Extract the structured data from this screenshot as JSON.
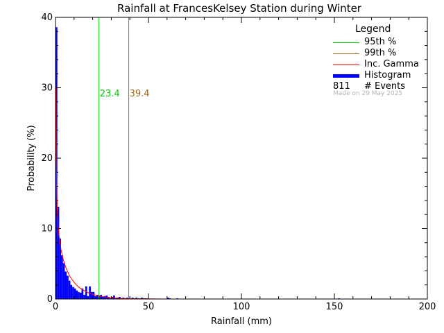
{
  "chart_data": {
    "type": "bar",
    "title": "Rainfall at FrancesKelsey Station during Winter",
    "xlabel": "Rainfall (mm)",
    "ylabel": "Probability (%)",
    "xlim": [
      0,
      200
    ],
    "ylim": [
      0,
      40
    ],
    "x_ticks": [
      0,
      50,
      100,
      150,
      200
    ],
    "y_ticks": [
      0,
      10,
      20,
      30,
      40
    ],
    "grid": false,
    "legend_position": "top-right",
    "bin_width": 1,
    "histogram": {
      "name": "Histogram",
      "color": "#0000ff",
      "bin_starts": [
        0,
        1,
        2,
        3,
        4,
        5,
        6,
        7,
        8,
        9,
        10,
        11,
        12,
        13,
        14,
        15,
        16,
        17,
        18,
        19,
        20,
        21,
        22,
        23,
        24,
        25,
        26,
        27,
        28,
        29,
        30,
        31,
        32,
        33,
        34,
        35,
        36,
        37,
        38,
        39,
        40,
        41,
        42,
        43,
        44,
        45,
        46,
        47,
        48,
        49,
        60,
        61,
        65,
        152
      ],
      "values": [
        38.6,
        13.1,
        8.6,
        6.2,
        5.1,
        3.9,
        3.3,
        2.6,
        2.0,
        1.7,
        1.5,
        1.2,
        1.0,
        0.9,
        1.5,
        0.6,
        1.8,
        0.4,
        1.8,
        1.0,
        1.0,
        0.4,
        0.6,
        0.5,
        0.6,
        0.3,
        0.4,
        0.5,
        0.3,
        0.1,
        0.3,
        0.5,
        0.1,
        0.2,
        0.3,
        0.1,
        0.2,
        0.1,
        0.2,
        0.1,
        0.1,
        0.2,
        0.1,
        0.2,
        0.1,
        0.1,
        0.2,
        0.1,
        0.1,
        0.1,
        0.2,
        0.1,
        0.1,
        0.1
      ]
    },
    "gamma_curve": {
      "name": "Inc. Gamma",
      "color": "#ff0000",
      "x": [
        0.2,
        0.4,
        0.7,
        1,
        1.5,
        2,
        3,
        4,
        5,
        6,
        7,
        8,
        10,
        12,
        14,
        16,
        18,
        20,
        23,
        26,
        30,
        35,
        40,
        50,
        60,
        80,
        100,
        150,
        200
      ],
      "y": [
        30.0,
        20.0,
        15.0,
        12.3,
        10.0,
        8.8,
        7.0,
        5.8,
        4.9,
        4.2,
        3.6,
        3.1,
        2.35,
        1.8,
        1.4,
        1.1,
        0.85,
        0.66,
        0.45,
        0.31,
        0.18,
        0.09,
        0.05,
        0.015,
        0.004,
        0.0005,
        0.0001,
        0,
        0
      ]
    },
    "percentiles": [
      {
        "name": "95th %",
        "value": 23.4,
        "label": "23.4",
        "color": "#00cc00"
      },
      {
        "name": "99th %",
        "value": 39.4,
        "label": "39.4",
        "color": "#a0681e"
      }
    ],
    "legend": {
      "title": "Legend",
      "items": [
        {
          "label": "95th %",
          "color": "#00cc00"
        },
        {
          "label": "99th %",
          "color": "#a0681e"
        },
        {
          "label": "Inc. Gamma",
          "color": "#ff0000"
        },
        {
          "label": "Histogram",
          "color": "#0000ff"
        }
      ],
      "events_count": "811",
      "events_label": "# Events",
      "made_note": "Made on 29 May 2025"
    }
  }
}
